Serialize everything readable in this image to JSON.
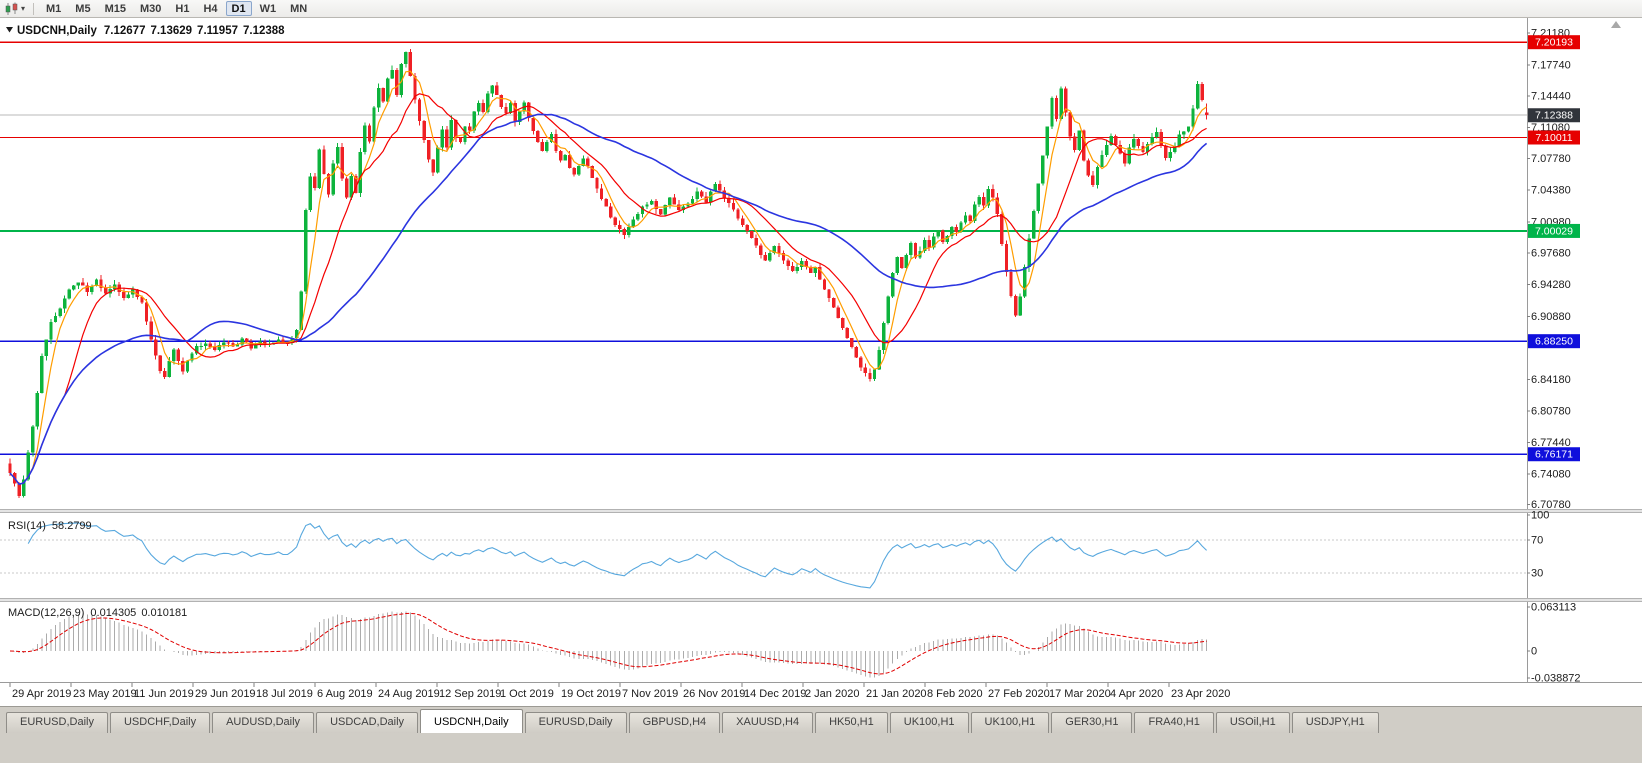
{
  "toolbar": {
    "timeframes": [
      "M1",
      "M5",
      "M15",
      "M30",
      "H1",
      "H4",
      "D1",
      "W1",
      "MN"
    ],
    "active_timeframe": "D1",
    "icons": {
      "chart_type": "candlestick-chart-icon",
      "dropdown": "caret-down-icon"
    }
  },
  "chart_title": {
    "symbol": "USDCNH,Daily",
    "open": "7.12677",
    "high": "7.13629",
    "low": "7.11957",
    "close": "7.12388"
  },
  "price_axis": {
    "side": "right",
    "ticks": [
      7.2118,
      7.1774,
      7.1444,
      7.1108,
      7.0778,
      7.0438,
      7.0098,
      6.9768,
      6.9428,
      6.9088,
      6.8418,
      6.8078,
      6.7744,
      6.7408,
      6.7078
    ],
    "badges": [
      {
        "price": 7.20193,
        "color": "#e60000",
        "kind": "resistance-line"
      },
      {
        "price": 7.12388,
        "color": "#30343b",
        "kind": "bid-price"
      },
      {
        "price": 7.10011,
        "color": "#e60000",
        "kind": "resistance-line"
      },
      {
        "price": 7.00029,
        "color": "#00b44a",
        "kind": "pivot-line"
      },
      {
        "price": 6.8825,
        "color": "#0f0fdc",
        "kind": "support-line"
      },
      {
        "price": 6.76171,
        "color": "#0f0fdc",
        "kind": "support-line"
      }
    ]
  },
  "time_axis": {
    "labels": [
      "29 Apr 2019",
      "23 May 2019",
      "11 Jun 2019",
      "29 Jun 2019",
      "18 Jul 2019",
      "6 Aug 2019",
      "24 Aug 2019",
      "12 Sep 2019",
      "1 Oct 2019",
      "19 Oct 2019",
      "7 Nov 2019",
      "26 Nov 2019",
      "14 Dec 2019",
      "2 Jan 2020",
      "21 Jan 2020",
      "8 Feb 2020",
      "27 Feb 2020",
      "17 Mar 2020",
      "4 Apr 2020",
      "23 Apr 2020"
    ]
  },
  "indicators": {
    "rsi": {
      "name": "RSI(14)",
      "value": "58.2799",
      "axis_labels": [
        100,
        70,
        30
      ],
      "level_lines": [
        70,
        30
      ],
      "line_color": "#58a8de"
    },
    "macd": {
      "name": "MACD(12,26,9)",
      "main_value": "0.014305",
      "signal_value": "0.010181",
      "axis_labels": [
        "0.063113",
        "0",
        "-0.038872"
      ],
      "axis_max": 0.063113,
      "axis_min": -0.038872,
      "histogram_color": "#ababab",
      "signal_color": "#e00000"
    }
  },
  "chart_data": {
    "type": "candlestick",
    "symbol": "USDCNH",
    "timeframe": "Daily",
    "price_range_visible": {
      "top": 7.2203,
      "bottom": 6.7043
    },
    "candle_count": 264,
    "first_open": 6.752,
    "last_candle": {
      "open": 7.12677,
      "high": 7.13629,
      "low": 7.11957,
      "close": 7.12388
    },
    "bid_price": 7.12388,
    "up_color": "#0db33c",
    "down_color": "#ef2025",
    "bid_line_color": "#b8b8b8",
    "moving_averages": [
      {
        "period": 5,
        "method": "SMA",
        "color": "#ff9d00"
      },
      {
        "period": 13,
        "method": "SMA",
        "color": "#f40000"
      },
      {
        "period": 40,
        "method": "SMA",
        "color": "#2b35e0"
      }
    ],
    "horizontal_lines": [
      {
        "price": 7.20193,
        "color": "#e60000",
        "width": 1.4
      },
      {
        "price": 7.10011,
        "color": "#e60000",
        "width": 1.4
      },
      {
        "price": 7.00029,
        "color": "#00b44a",
        "width": 1.8
      },
      {
        "price": 6.8825,
        "color": "#0f0fdc",
        "width": 1.8
      },
      {
        "price": 6.76171,
        "color": "#0f0fdc",
        "width": 1.8
      }
    ],
    "close_anchors": [
      [
        0,
        6.742
      ],
      [
        1,
        6.731
      ],
      [
        2,
        6.716
      ],
      [
        3,
        6.734
      ],
      [
        5,
        6.792
      ],
      [
        7,
        6.865
      ],
      [
        9,
        6.902
      ],
      [
        11,
        6.918
      ],
      [
        13,
        6.938
      ],
      [
        15,
        6.946
      ],
      [
        17,
        6.936
      ],
      [
        19,
        6.948
      ],
      [
        21,
        6.934
      ],
      [
        23,
        6.944
      ],
      [
        25,
        6.927
      ],
      [
        27,
        6.937
      ],
      [
        29,
        6.924
      ],
      [
        31,
        6.884
      ],
      [
        33,
        6.852
      ],
      [
        34,
        6.843
      ],
      [
        35,
        6.862
      ],
      [
        36,
        6.874
      ],
      [
        38,
        6.849
      ],
      [
        39,
        6.861
      ],
      [
        41,
        6.876
      ],
      [
        43,
        6.881
      ],
      [
        45,
        6.872
      ],
      [
        47,
        6.882
      ],
      [
        49,
        6.877
      ],
      [
        51,
        6.884
      ],
      [
        53,
        6.876
      ],
      [
        55,
        6.883
      ],
      [
        57,
        6.878
      ],
      [
        59,
        6.884
      ],
      [
        61,
        6.879
      ],
      [
        63,
        6.893
      ],
      [
        64,
        6.936
      ],
      [
        65,
        7.022
      ],
      [
        66,
        7.058
      ],
      [
        67,
        7.046
      ],
      [
        68,
        7.088
      ],
      [
        69,
        7.06
      ],
      [
        70,
        7.041
      ],
      [
        71,
        7.072
      ],
      [
        72,
        7.089
      ],
      [
        73,
        7.057
      ],
      [
        74,
        7.037
      ],
      [
        75,
        7.058
      ],
      [
        76,
        7.042
      ],
      [
        77,
        7.083
      ],
      [
        78,
        7.112
      ],
      [
        79,
        7.097
      ],
      [
        80,
        7.132
      ],
      [
        81,
        7.153
      ],
      [
        82,
        7.137
      ],
      [
        83,
        7.163
      ],
      [
        84,
        7.172
      ],
      [
        85,
        7.147
      ],
      [
        86,
        7.178
      ],
      [
        87,
        7.191
      ],
      [
        88,
        7.167
      ],
      [
        89,
        7.141
      ],
      [
        90,
        7.117
      ],
      [
        91,
        7.097
      ],
      [
        92,
        7.077
      ],
      [
        93,
        7.061
      ],
      [
        94,
        7.088
      ],
      [
        95,
        7.107
      ],
      [
        96,
        7.091
      ],
      [
        97,
        7.118
      ],
      [
        98,
        7.101
      ],
      [
        99,
        7.095
      ],
      [
        100,
        7.112
      ],
      [
        101,
        7.107
      ],
      [
        102,
        7.128
      ],
      [
        103,
        7.137
      ],
      [
        104,
        7.127
      ],
      [
        105,
        7.148
      ],
      [
        106,
        7.157
      ],
      [
        107,
        7.145
      ],
      [
        108,
        7.133
      ],
      [
        109,
        7.125
      ],
      [
        110,
        7.136
      ],
      [
        111,
        7.117
      ],
      [
        112,
        7.128
      ],
      [
        113,
        7.139
      ],
      [
        114,
        7.121
      ],
      [
        115,
        7.107
      ],
      [
        116,
        7.095
      ],
      [
        117,
        7.085
      ],
      [
        118,
        7.096
      ],
      [
        119,
        7.103
      ],
      [
        120,
        7.085
      ],
      [
        121,
        7.075
      ],
      [
        122,
        7.082
      ],
      [
        123,
        7.067
      ],
      [
        124,
        7.061
      ],
      [
        125,
        7.068
      ],
      [
        126,
        7.078
      ],
      [
        127,
        7.071
      ],
      [
        128,
        7.057
      ],
      [
        129,
        7.047
      ],
      [
        130,
        7.035
      ],
      [
        131,
        7.027
      ],
      [
        132,
        7.015
      ],
      [
        133,
        7.007
      ],
      [
        135,
        6.996
      ],
      [
        136,
        7.005
      ],
      [
        137,
        7.012
      ],
      [
        139,
        7.027
      ],
      [
        141,
        7.032
      ],
      [
        143,
        7.018
      ],
      [
        145,
        7.036
      ],
      [
        147,
        7.022
      ],
      [
        149,
        7.029
      ],
      [
        151,
        7.042
      ],
      [
        153,
        7.031
      ],
      [
        155,
        7.052
      ],
      [
        157,
        7.036
      ],
      [
        159,
        7.022
      ],
      [
        161,
        7.006
      ],
      [
        163,
        6.992
      ],
      [
        165,
        6.976
      ],
      [
        166,
        6.969
      ],
      [
        167,
        6.976
      ],
      [
        168,
        6.985
      ],
      [
        170,
        6.97
      ],
      [
        172,
        6.956
      ],
      [
        174,
        6.968
      ],
      [
        176,
        6.956
      ],
      [
        177,
        6.961
      ],
      [
        179,
        6.938
      ],
      [
        181,
        6.918
      ],
      [
        183,
        6.898
      ],
      [
        185,
        6.877
      ],
      [
        187,
        6.856
      ],
      [
        189,
        6.843
      ],
      [
        190,
        6.852
      ],
      [
        191,
        6.872
      ],
      [
        192,
        6.902
      ],
      [
        193,
        6.931
      ],
      [
        194,
        6.957
      ],
      [
        195,
        6.971
      ],
      [
        196,
        6.961
      ],
      [
        197,
        6.974
      ],
      [
        198,
        6.986
      ],
      [
        199,
        6.971
      ],
      [
        200,
        6.98
      ],
      [
        201,
        6.99
      ],
      [
        202,
        6.983
      ],
      [
        203,
        6.994
      ],
      [
        204,
        7.001
      ],
      [
        205,
        6.99
      ],
      [
        206,
        6.996
      ],
      [
        207,
        7.006
      ],
      [
        208,
        6.999
      ],
      [
        209,
        7.01
      ],
      [
        210,
        7.018
      ],
      [
        211,
        7.011
      ],
      [
        212,
        7.028
      ],
      [
        213,
        7.038
      ],
      [
        214,
        7.027
      ],
      [
        215,
        7.044
      ],
      [
        216,
        7.037
      ],
      [
        217,
        7.017
      ],
      [
        218,
        6.987
      ],
      [
        219,
        6.957
      ],
      [
        220,
        6.931
      ],
      [
        221,
        6.911
      ],
      [
        222,
        6.932
      ],
      [
        223,
        6.962
      ],
      [
        224,
        6.992
      ],
      [
        225,
        7.022
      ],
      [
        226,
        7.052
      ],
      [
        227,
        7.082
      ],
      [
        228,
        7.112
      ],
      [
        229,
        7.141
      ],
      [
        230,
        7.121
      ],
      [
        231,
        7.152
      ],
      [
        232,
        7.127
      ],
      [
        233,
        7.101
      ],
      [
        234,
        7.088
      ],
      [
        235,
        7.108
      ],
      [
        236,
        7.077
      ],
      [
        237,
        7.061
      ],
      [
        238,
        7.048
      ],
      [
        239,
        7.068
      ],
      [
        240,
        7.082
      ],
      [
        241,
        7.092
      ],
      [
        242,
        7.102
      ],
      [
        243,
        7.093
      ],
      [
        244,
        7.083
      ],
      [
        245,
        7.071
      ],
      [
        246,
        7.088
      ],
      [
        247,
        7.098
      ],
      [
        248,
        7.091
      ],
      [
        249,
        7.083
      ],
      [
        250,
        7.092
      ],
      [
        251,
        7.102
      ],
      [
        252,
        7.106
      ],
      [
        253,
        7.091
      ],
      [
        254,
        7.079
      ],
      [
        255,
        7.086
      ],
      [
        256,
        7.092
      ],
      [
        257,
        7.102
      ],
      [
        258,
        7.106
      ],
      [
        259,
        7.112
      ],
      [
        260,
        7.132
      ],
      [
        261,
        7.156
      ],
      [
        262,
        7.14
      ],
      [
        263,
        7.12388
      ]
    ]
  },
  "tabs": {
    "items": [
      "EURUSD,Daily",
      "USDCHF,Daily",
      "AUDUSD,Daily",
      "USDCAD,Daily",
      "USDCNH,Daily",
      "EURUSD,Daily",
      "GBPUSD,H4",
      "XAUUSD,H4",
      "HK50,H1",
      "UK100,H1",
      "UK100,H1",
      "GER30,H1",
      "FRA40,H1",
      "USOil,H1",
      "USDJPY,H1"
    ],
    "active_index": 4
  },
  "colors": {
    "axis_text": "#1c1c1c",
    "panel_bg": "#ffffff"
  }
}
